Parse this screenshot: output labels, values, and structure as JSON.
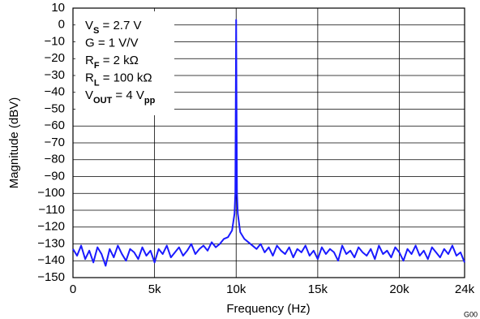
{
  "chart_data": {
    "type": "line",
    "xlabel": "Frequency (Hz)",
    "ylabel": "Magnitude (dBV)",
    "figure_id": "G00",
    "annotations": [
      [
        "V",
        "S",
        " = 2.7 V"
      ],
      [
        "G = 1 V/V"
      ],
      [
        "R",
        "F",
        " = 2 kΩ"
      ],
      [
        "R",
        "L",
        " = 100 kΩ"
      ],
      [
        "V",
        "OUT",
        " = 4 V",
        "pp"
      ]
    ],
    "xlim": [
      0,
      24000
    ],
    "ylim": [
      -150,
      10
    ],
    "xticks": [
      0,
      {
        "value": 5000,
        "label": "5k"
      },
      {
        "value": 10000,
        "label": "10k"
      },
      {
        "value": 15000,
        "label": "15k"
      },
      {
        "value": 20000,
        "label": "20k"
      },
      {
        "value": 24000,
        "label": "24k"
      }
    ],
    "yticks": [
      {
        "value": -150,
        "label": "−150"
      },
      {
        "value": -140,
        "label": "−140"
      },
      {
        "value": -130,
        "label": "−130"
      },
      {
        "value": -120,
        "label": "−120"
      },
      {
        "value": -110,
        "label": "−110"
      },
      {
        "value": -100,
        "label": "−100"
      },
      {
        "value": -90,
        "label": "−90"
      },
      {
        "value": -80,
        "label": "−80"
      },
      {
        "value": -70,
        "label": "−70"
      },
      {
        "value": -60,
        "label": "−60"
      },
      {
        "value": -50,
        "label": "−50"
      },
      {
        "value": -40,
        "label": "−40"
      },
      {
        "value": -30,
        "label": "−30"
      },
      {
        "value": -20,
        "label": "−20"
      },
      {
        "value": -10,
        "label": "−10"
      },
      0,
      10
    ],
    "grid": true,
    "x": [
      0,
      250,
      500,
      750,
      1000,
      1250,
      1500,
      1750,
      2000,
      2250,
      2500,
      2750,
      3000,
      3250,
      3500,
      3750,
      4000,
      4250,
      4500,
      4750,
      5000,
      5250,
      5500,
      5750,
      6000,
      6250,
      6500,
      6750,
      7000,
      7250,
      7500,
      7750,
      8000,
      8250,
      8500,
      8750,
      9000,
      9250,
      9500,
      9750,
      9900,
      9950,
      10000,
      10050,
      10100,
      10250,
      10500,
      10750,
      11000,
      11250,
      11500,
      11750,
      12000,
      12250,
      12500,
      12750,
      13000,
      13250,
      13500,
      13750,
      14000,
      14250,
      14500,
      14750,
      15000,
      15250,
      15500,
      15750,
      16000,
      16250,
      16500,
      16750,
      17000,
      17250,
      17500,
      17750,
      18000,
      18250,
      18500,
      18750,
      19000,
      19250,
      19500,
      19750,
      20000,
      20250,
      20500,
      20750,
      21000,
      21250,
      21500,
      21750,
      22000,
      22250,
      22500,
      22750,
      23000,
      23250,
      23500,
      23750,
      24000
    ],
    "series": [
      {
        "color": "#1a1aff",
        "values": [
          -133,
          -137,
          -131,
          -139,
          -134,
          -141,
          -132,
          -136,
          -143,
          -133,
          -138,
          -131,
          -136,
          -140,
          -133,
          -135,
          -139,
          -132,
          -137,
          -134,
          -141,
          -133,
          -136,
          -131,
          -138,
          -135,
          -132,
          -137,
          -134,
          -130,
          -136,
          -133,
          -131,
          -134,
          -129,
          -132,
          -130,
          -127,
          -126,
          -122,
          -112,
          -100,
          3,
          -100,
          -112,
          -123,
          -127,
          -129,
          -131,
          -133,
          -130,
          -135,
          -132,
          -137,
          -131,
          -134,
          -136,
          -132,
          -138,
          -133,
          -135,
          -131,
          -137,
          -134,
          -139,
          -132,
          -136,
          -133,
          -135,
          -140,
          -131,
          -136,
          -134,
          -138,
          -132,
          -135,
          -137,
          -133,
          -139,
          -131,
          -136,
          -134,
          -138,
          -132,
          -135,
          -140,
          -133,
          -136,
          -131,
          -137,
          -134,
          -139,
          -132,
          -135,
          -138,
          -133,
          -136,
          -131,
          -137,
          -135,
          -141
        ]
      }
    ]
  }
}
